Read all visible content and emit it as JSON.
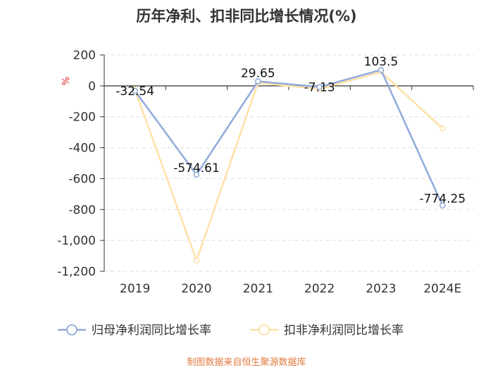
{
  "chart_data": {
    "type": "line",
    "title": "历年净利、扣非同比增长情况(%)",
    "ylabel": "%",
    "categories": [
      "2019",
      "2020",
      "2021",
      "2022",
      "2023",
      "2024E"
    ],
    "ylim": [
      -1200,
      200
    ],
    "yticks": [
      200,
      0,
      -200,
      -400,
      -600,
      -800,
      -1000,
      -1200
    ],
    "ytick_labels": [
      "200",
      "0",
      "-200",
      "-400",
      "-600",
      "-800",
      "-1,000",
      "-1,200"
    ],
    "grid": true,
    "legend_position": "bottom",
    "series": [
      {
        "name": "归母净利润同比增长率",
        "color": "#8faadc",
        "values": [
          -32.54,
          -574.61,
          29.65,
          -7.13,
          103.5,
          -774.25
        ],
        "labels": [
          "-32.54",
          "-574.61",
          "29.65",
          "-7.13",
          "103.5",
          "-774.25"
        ]
      },
      {
        "name": "扣非净利润同比增长率",
        "color": "#ffe0a6",
        "values": [
          -25,
          -1130,
          20,
          -20,
          90,
          -275
        ]
      }
    ]
  },
  "source": "制图数据来自恒生聚源数据库",
  "colors": {
    "source_text": "#e07a3f",
    "unit_text": "#e02020",
    "axis": "#333333",
    "grid": "#dddddd"
  }
}
